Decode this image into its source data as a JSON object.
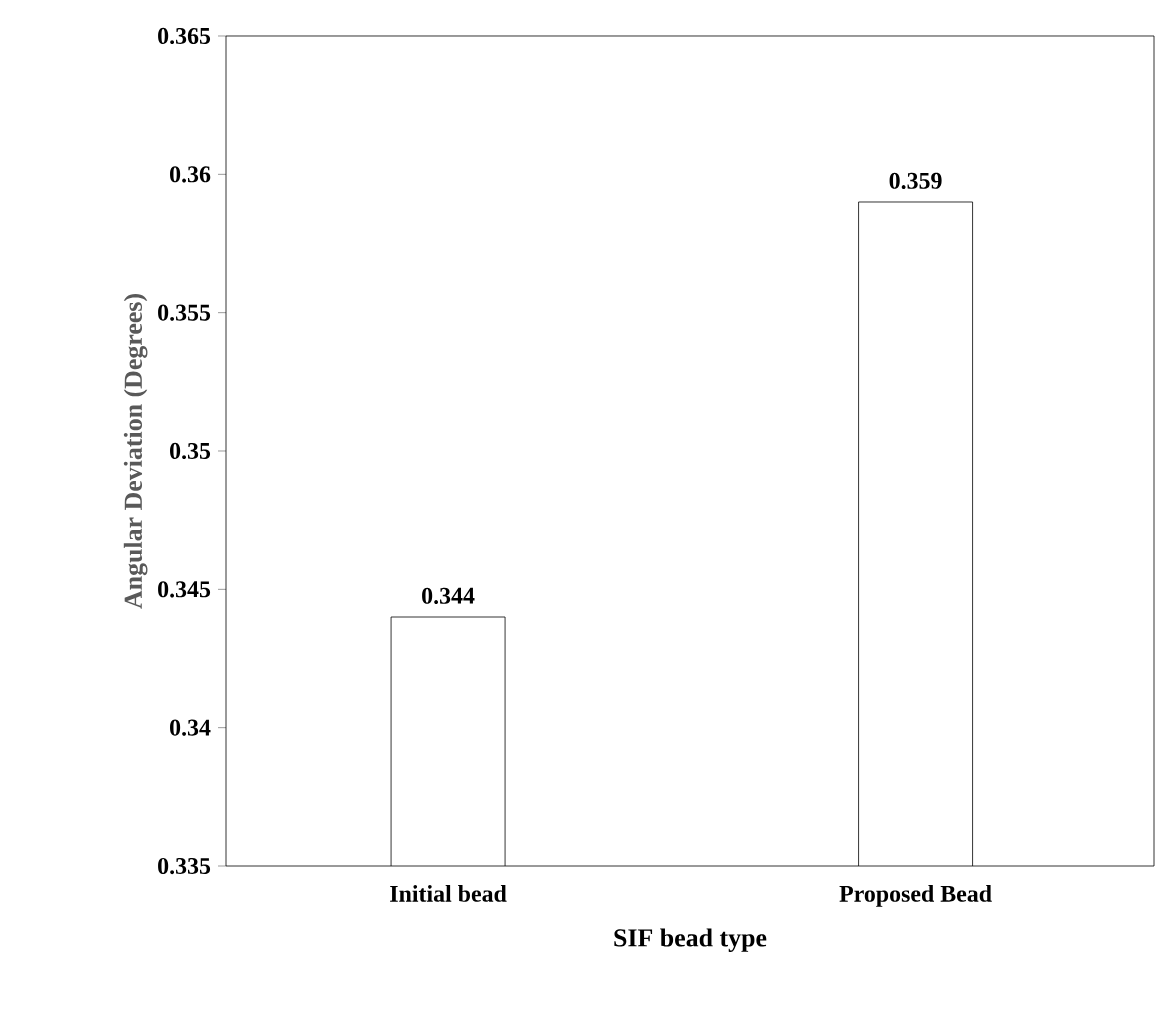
{
  "chart_data": {
    "type": "bar",
    "xlabel": "SIF bead type",
    "ylabel": "Angular Deviation (Degrees)",
    "categories": [
      "Initial bead",
      "Proposed Bead"
    ],
    "values": [
      0.344,
      0.359
    ],
    "color": "#ffffff",
    "ylim": [
      0.335,
      0.365
    ],
    "yticks": [
      0.335,
      0.34,
      0.345,
      0.35,
      0.355,
      0.36,
      0.365
    ],
    "data_labels": true,
    "grid": false
  }
}
